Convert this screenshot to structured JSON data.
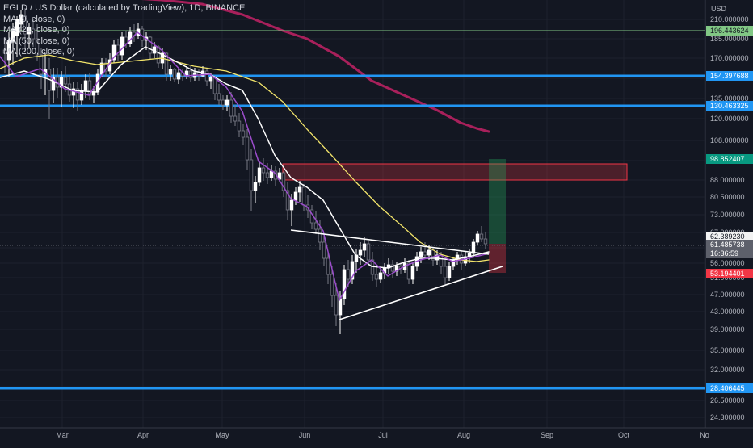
{
  "chart_data": {
    "type": "candlestick",
    "title": "EGLD / US Dollar (calculated by TradingView), 1D, BINANCE",
    "currency_label": "USD",
    "indicators": [
      {
        "label": "MA (9, close, 0)",
        "color": "#9c4dcc"
      },
      {
        "label": "MA (21, close, 0)",
        "color": "#ffffff"
      },
      {
        "label": "MA (50, close, 0)",
        "color": "#f3e56b"
      },
      {
        "label": "MA (200, close, 0)",
        "color": "#a8205b"
      }
    ],
    "y_ticks": [
      "210.000000",
      "185.000000",
      "170.000000",
      "150.000000",
      "135.000000",
      "120.000000",
      "108.000000",
      "96.000000",
      "88.000000",
      "80.500000",
      "73.000000",
      "67.000000",
      "61.000000",
      "56.000000",
      "51.000000",
      "47.000000",
      "43.000000",
      "39.000000",
      "35.000000",
      "32.000000",
      "29.500000",
      "26.500000",
      "24.300000"
    ],
    "x_ticks": [
      "Mar",
      "Apr",
      "May",
      "Jun",
      "Jul",
      "Aug",
      "Sep",
      "Oct",
      "No"
    ],
    "price_levels": [
      {
        "label": "196.443624",
        "color": "#81c784",
        "value": 196.44
      },
      {
        "label": "154.397688",
        "color": "#2196f3",
        "value": 154.4
      },
      {
        "label": "130.463325",
        "color": "#2196f3",
        "value": 130.46
      },
      {
        "label": "28.406445",
        "color": "#2196f3",
        "value": 28.41
      }
    ],
    "target_label": "98.852407",
    "stop_label": "53.194401",
    "last_price_label": "62.389230",
    "current_price_label": "61.485738",
    "countdown_label": "16:36:59",
    "ma200": [
      [
        16,
        -12
      ],
      [
        100,
        -6
      ],
      [
        200,
        0
      ],
      [
        250,
        5
      ],
      [
        300,
        18
      ],
      [
        350,
        38
      ],
      [
        380,
        48
      ],
      [
        420,
        70
      ],
      [
        460,
        100
      ],
      [
        500,
        118
      ],
      [
        540,
        136
      ],
      [
        570,
        152
      ],
      [
        590,
        159
      ],
      [
        605,
        163
      ]
    ],
    "ma50": [
      [
        0,
        85
      ],
      [
        30,
        72
      ],
      [
        60,
        68
      ],
      [
        90,
        75
      ],
      [
        120,
        80
      ],
      [
        160,
        76
      ],
      [
        200,
        72
      ],
      [
        240,
        82
      ],
      [
        280,
        88
      ],
      [
        320,
        102
      ],
      [
        350,
        126
      ],
      [
        380,
        160
      ],
      [
        410,
        192
      ],
      [
        440,
        225
      ],
      [
        470,
        256
      ],
      [
        500,
        282
      ],
      [
        520,
        300
      ],
      [
        545,
        315
      ],
      [
        570,
        322
      ],
      [
        590,
        324
      ],
      [
        605,
        322
      ]
    ],
    "ma21": [
      [
        0,
        96
      ],
      [
        30,
        88
      ],
      [
        60,
        98
      ],
      [
        90,
        112
      ],
      [
        120,
        114
      ],
      [
        150,
        80
      ],
      [
        180,
        58
      ],
      [
        210,
        72
      ],
      [
        240,
        88
      ],
      [
        260,
        92
      ],
      [
        280,
        104
      ],
      [
        300,
        112
      ],
      [
        320,
        148
      ],
      [
        340,
        192
      ],
      [
        360,
        220
      ],
      [
        380,
        232
      ],
      [
        400,
        248
      ],
      [
        420,
        282
      ],
      [
        440,
        316
      ],
      [
        460,
        330
      ],
      [
        480,
        332
      ],
      [
        500,
        325
      ],
      [
        520,
        320
      ],
      [
        540,
        320
      ],
      [
        560,
        322
      ],
      [
        580,
        318
      ],
      [
        605,
        312
      ]
    ],
    "ma9": [
      [
        0,
        70
      ],
      [
        20,
        95
      ],
      [
        50,
        85
      ],
      [
        80,
        110
      ],
      [
        110,
        118
      ],
      [
        140,
        72
      ],
      [
        170,
        40
      ],
      [
        200,
        62
      ],
      [
        230,
        94
      ],
      [
        260,
        92
      ],
      [
        280,
        108
      ],
      [
        300,
        138
      ],
      [
        320,
        200
      ],
      [
        340,
        214
      ],
      [
        360,
        246
      ],
      [
        380,
        256
      ],
      [
        400,
        286
      ],
      [
        420,
        372
      ],
      [
        440,
        336
      ],
      [
        460,
        322
      ],
      [
        480,
        342
      ],
      [
        500,
        330
      ],
      [
        520,
        322
      ],
      [
        545,
        316
      ],
      [
        560,
        324
      ],
      [
        580,
        320
      ],
      [
        605,
        314
      ]
    ],
    "trendlines": [
      [
        [
          360,
          285
        ],
        [
          605,
          315
        ]
      ],
      [
        [
          420,
          396
        ],
        [
          622,
          330
        ]
      ]
    ],
    "red_zone": {
      "x1": 350,
      "x2": 776,
      "y1": 203,
      "y2": 223
    },
    "long_position": {
      "x": 605,
      "w": 21,
      "target_y": 197,
      "entry_y": 302,
      "stop_y": 338
    },
    "candles": [
      [
        6,
        62,
        46,
        90,
        66
      ],
      [
        11,
        74,
        40,
        96,
        50
      ],
      [
        16,
        52,
        28,
        80,
        36
      ],
      [
        21,
        44,
        20,
        70,
        24
      ],
      [
        26,
        30,
        12,
        40,
        18
      ],
      [
        31,
        20,
        10,
        64,
        42
      ],
      [
        36,
        42,
        28,
        60,
        34
      ],
      [
        41,
        36,
        24,
        58,
        48
      ],
      [
        46,
        48,
        30,
        76,
        68
      ],
      [
        51,
        68,
        60,
        110,
        92
      ],
      [
        56,
        92,
        66,
        118,
        86
      ],
      [
        61,
        86,
        72,
        148,
        112
      ],
      [
        66,
        112,
        84,
        128,
        96
      ],
      [
        71,
        96,
        84,
        122,
        108
      ],
      [
        76,
        108,
        88,
        132,
        96
      ],
      [
        81,
        96,
        82,
        114,
        104
      ],
      [
        86,
        104,
        94,
        126,
        118
      ],
      [
        91,
        118,
        102,
        134,
        110
      ],
      [
        96,
        110,
        102,
        138,
        124
      ],
      [
        101,
        124,
        104,
        130,
        112
      ],
      [
        106,
        112,
        92,
        122,
        100
      ],
      [
        111,
        100,
        90,
        124,
        118
      ],
      [
        116,
        118,
        106,
        128,
        114
      ],
      [
        121,
        114,
        86,
        118,
        92
      ],
      [
        126,
        92,
        72,
        96,
        78
      ],
      [
        131,
        78,
        72,
        96,
        88
      ],
      [
        136,
        88,
        66,
        92,
        74
      ],
      [
        141,
        74,
        50,
        78,
        56
      ],
      [
        146,
        56,
        48,
        76,
        68
      ],
      [
        151,
        68,
        40,
        74,
        46
      ],
      [
        156,
        46,
        38,
        60,
        54
      ],
      [
        161,
        54,
        34,
        58,
        40
      ],
      [
        166,
        40,
        30,
        52,
        44
      ],
      [
        171,
        44,
        28,
        48,
        36
      ],
      [
        176,
        36,
        32,
        58,
        50
      ],
      [
        181,
        50,
        40,
        62,
        46
      ],
      [
        186,
        46,
        44,
        74,
        66
      ],
      [
        191,
        66,
        52,
        72,
        58
      ],
      [
        196,
        58,
        56,
        84,
        78
      ],
      [
        201,
        78,
        60,
        86,
        66
      ],
      [
        206,
        66,
        64,
        100,
        92
      ],
      [
        211,
        92,
        80,
        100,
        86
      ],
      [
        216,
        86,
        84,
        102,
        98
      ],
      [
        221,
        98,
        84,
        104,
        90
      ],
      [
        226,
        90,
        86,
        100,
        94
      ],
      [
        231,
        94,
        82,
        98,
        88
      ],
      [
        236,
        88,
        82,
        102,
        96
      ],
      [
        241,
        96,
        84,
        100,
        90
      ],
      [
        246,
        90,
        86,
        100,
        94
      ],
      [
        251,
        94,
        82,
        96,
        88
      ],
      [
        256,
        88,
        84,
        106,
        100
      ],
      [
        261,
        100,
        90,
        110,
        96
      ],
      [
        266,
        96,
        94,
        124,
        116
      ],
      [
        271,
        116,
        104,
        130,
        124
      ],
      [
        276,
        124,
        118,
        136,
        130
      ],
      [
        281,
        130,
        118,
        138,
        124
      ],
      [
        286,
        124,
        114,
        152,
        144
      ],
      [
        291,
        144,
        130,
        156,
        150
      ],
      [
        296,
        150,
        140,
        170,
        162
      ],
      [
        301,
        162,
        154,
        180,
        170
      ],
      [
        306,
        170,
        160,
        210,
        198
      ],
      [
        311,
        198,
        184,
        262,
        236
      ],
      [
        316,
        236,
        218,
        252,
        226
      ],
      [
        321,
        226,
        200,
        230,
        208
      ],
      [
        326,
        208,
        196,
        224,
        214
      ],
      [
        331,
        214,
        202,
        228,
        220
      ],
      [
        336,
        220,
        204,
        224,
        212
      ],
      [
        341,
        212,
        206,
        230,
        222
      ],
      [
        346,
        222,
        208,
        226,
        214
      ],
      [
        351,
        214,
        212,
        244,
        236
      ],
      [
        356,
        236,
        226,
        272,
        260
      ],
      [
        361,
        260,
        240,
        280,
        248
      ],
      [
        366,
        248,
        232,
        254,
        238
      ],
      [
        371,
        238,
        224,
        250,
        232
      ],
      [
        376,
        232,
        228,
        262,
        254
      ],
      [
        381,
        254,
        242,
        270,
        260
      ],
      [
        386,
        260,
        254,
        284,
        276
      ],
      [
        391,
        276,
        262,
        290,
        284
      ],
      [
        396,
        284,
        272,
        310,
        300
      ],
      [
        401,
        300,
        290,
        330,
        320
      ],
      [
        406,
        320,
        312,
        352,
        340
      ],
      [
        411,
        340,
        330,
        380,
        366
      ],
      [
        416,
        366,
        350,
        404,
        390
      ],
      [
        421,
        390,
        360,
        414,
        370
      ],
      [
        426,
        370,
        328,
        378,
        334
      ],
      [
        431,
        334,
        322,
        356,
        346
      ],
      [
        436,
        346,
        316,
        352,
        324
      ],
      [
        441,
        324,
        308,
        338,
        316
      ],
      [
        446,
        316,
        300,
        328,
        310
      ],
      [
        451,
        310,
        294,
        318,
        302
      ],
      [
        456,
        302,
        298,
        330,
        322
      ],
      [
        461,
        322,
        312,
        348,
        340
      ],
      [
        466,
        340,
        330,
        356,
        346
      ],
      [
        471,
        346,
        332,
        350,
        338
      ],
      [
        476,
        338,
        326,
        346,
        332
      ],
      [
        481,
        332,
        320,
        340,
        328
      ],
      [
        486,
        328,
        322,
        344,
        336
      ],
      [
        491,
        336,
        324,
        342,
        330
      ],
      [
        496,
        330,
        326,
        340,
        334
      ],
      [
        501,
        334,
        320,
        338,
        326
      ],
      [
        506,
        326,
        322,
        352,
        346
      ],
      [
        511,
        346,
        324,
        352,
        330
      ],
      [
        516,
        330,
        312,
        336,
        318
      ],
      [
        521,
        318,
        306,
        326,
        312
      ],
      [
        526,
        312,
        300,
        320,
        316
      ],
      [
        531,
        316,
        304,
        322,
        310
      ],
      [
        536,
        310,
        306,
        330,
        322
      ],
      [
        541,
        322,
        310,
        328,
        316
      ],
      [
        546,
        316,
        312,
        340,
        330
      ],
      [
        551,
        330,
        318,
        352,
        344
      ],
      [
        556,
        344,
        324,
        348,
        330
      ],
      [
        561,
        330,
        318,
        334,
        322
      ],
      [
        566,
        322,
        312,
        328,
        316
      ],
      [
        571,
        316,
        310,
        334,
        326
      ],
      [
        576,
        326,
        312,
        330,
        318
      ],
      [
        581,
        318,
        308,
        326,
        314
      ],
      [
        586,
        314,
        296,
        318,
        300
      ],
      [
        591,
        300,
        286,
        304,
        290
      ],
      [
        596,
        290,
        280,
        300,
        296
      ],
      [
        601,
        296,
        288,
        308,
        302
      ]
    ]
  }
}
